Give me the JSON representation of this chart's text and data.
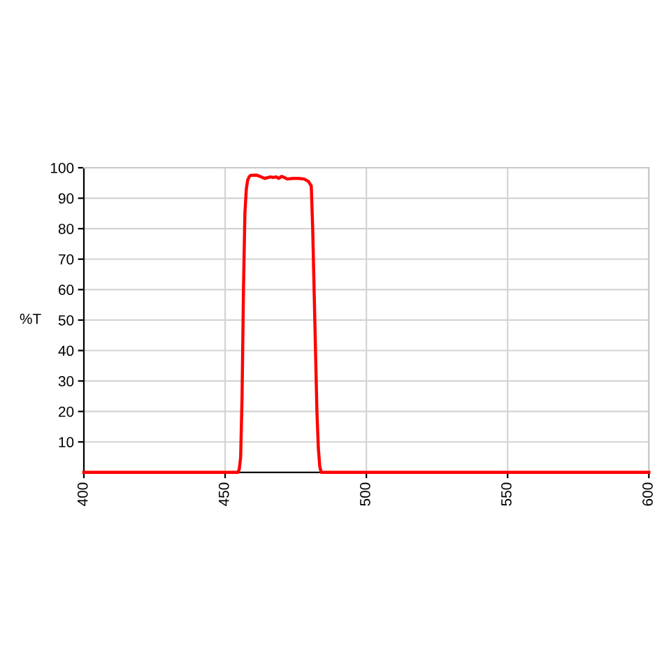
{
  "chart_data": {
    "type": "line",
    "ylabel": "%T",
    "x": [
      400,
      454.5,
      455,
      455.5,
      456,
      456.5,
      457,
      457.5,
      458,
      458.5,
      459,
      461,
      462,
      464,
      466,
      467,
      468,
      469,
      470,
      471,
      472,
      474,
      476,
      478,
      479.5,
      480.5,
      481,
      481.5,
      482,
      482.5,
      483,
      483.5,
      484,
      600
    ],
    "series": [
      {
        "color": "#ff0000",
        "values": [
          0,
          0,
          1,
          5,
          25,
          60,
          85,
          93,
          96,
          97,
          97.5,
          97.6,
          97.3,
          96.5,
          97,
          96.8,
          97,
          96.5,
          97.2,
          96.8,
          96.3,
          96.5,
          96.5,
          96.3,
          95.5,
          94,
          80,
          60,
          40,
          20,
          8,
          2,
          0,
          0
        ]
      }
    ],
    "xlim": [
      400,
      600
    ],
    "xticks": [
      400,
      450,
      500,
      550,
      600
    ],
    "ylim": [
      0,
      100
    ],
    "yticks": [
      10,
      20,
      30,
      40,
      50,
      60,
      70,
      80,
      90,
      100
    ],
    "grid": true,
    "marker": "none",
    "line_style": "solid"
  }
}
